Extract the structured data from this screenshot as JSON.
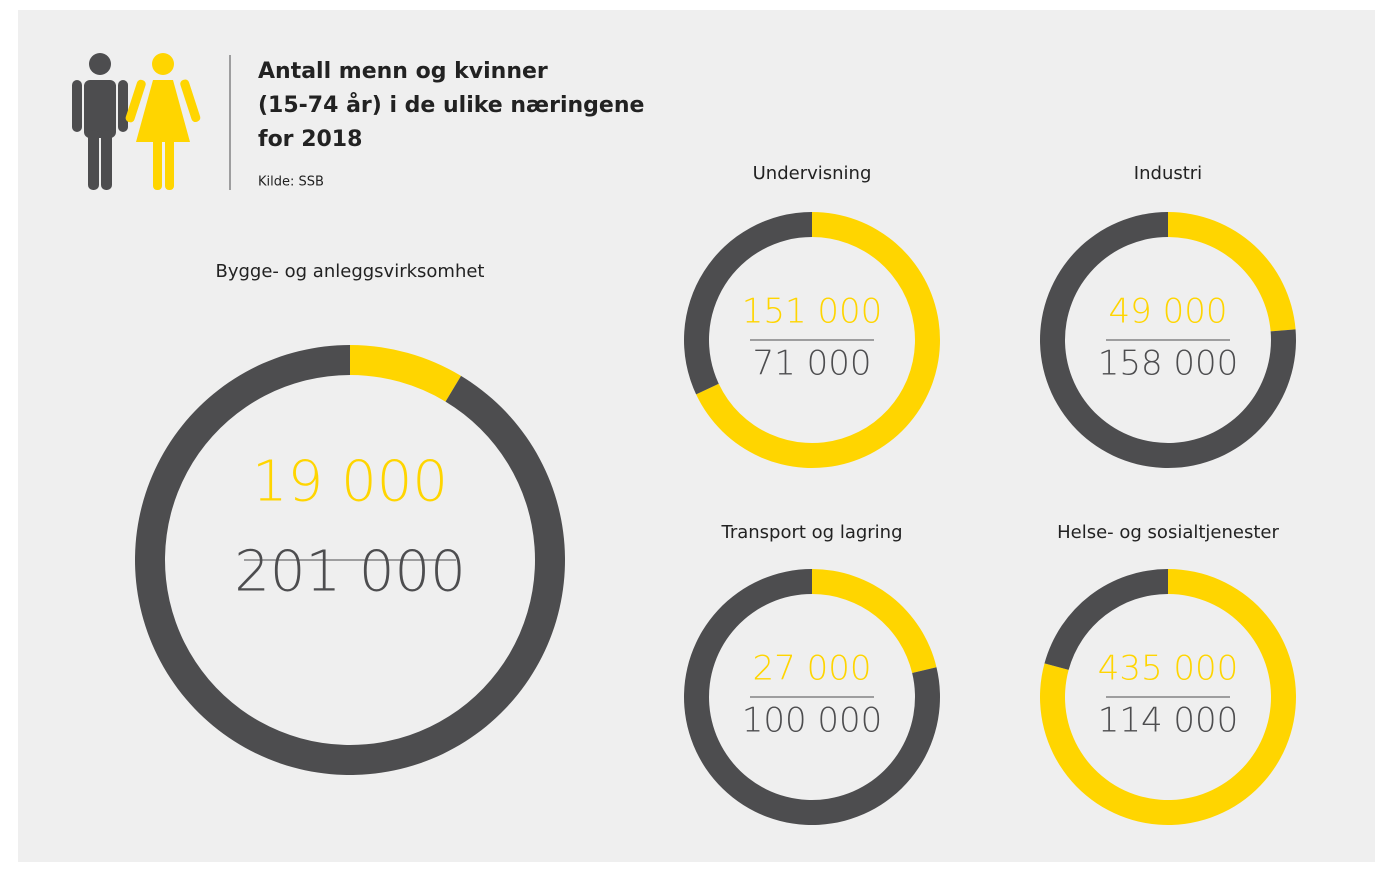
{
  "title_lines": [
    "Antall menn og kvinner",
    "(15-74 år) i de ulike næringene",
    "for 2018"
  ],
  "source": "Kilde: SSB",
  "chart_data": [
    {
      "type": "donut",
      "title": "Bygge- og anleggsvirksomhet",
      "values": [
        19000,
        201000
      ],
      "value_labels": [
        "19 000",
        "201 000"
      ],
      "colors": [
        "#ffd500",
        "#4d4d4f"
      ]
    },
    {
      "type": "donut",
      "title": "Undervisning",
      "values": [
        151000,
        71000
      ],
      "value_labels": [
        "151 000",
        "71 000"
      ],
      "colors": [
        "#ffd500",
        "#4d4d4f"
      ]
    },
    {
      "type": "donut",
      "title": "Industri",
      "values": [
        49000,
        158000
      ],
      "value_labels": [
        "49 000",
        "158 000"
      ],
      "colors": [
        "#ffd500",
        "#4d4d4f"
      ]
    },
    {
      "type": "donut",
      "title": "Transport og lagring",
      "values": [
        27000,
        100000
      ],
      "value_labels": [
        "27 000",
        "100 000"
      ],
      "colors": [
        "#ffd500",
        "#4d4d4f"
      ]
    },
    {
      "type": "donut",
      "title": "Helse- og sosialtjenester",
      "values": [
        435000,
        114000
      ],
      "value_labels": [
        "435 000",
        "114 000"
      ],
      "colors": [
        "#ffd500",
        "#4d4d4f"
      ]
    }
  ]
}
